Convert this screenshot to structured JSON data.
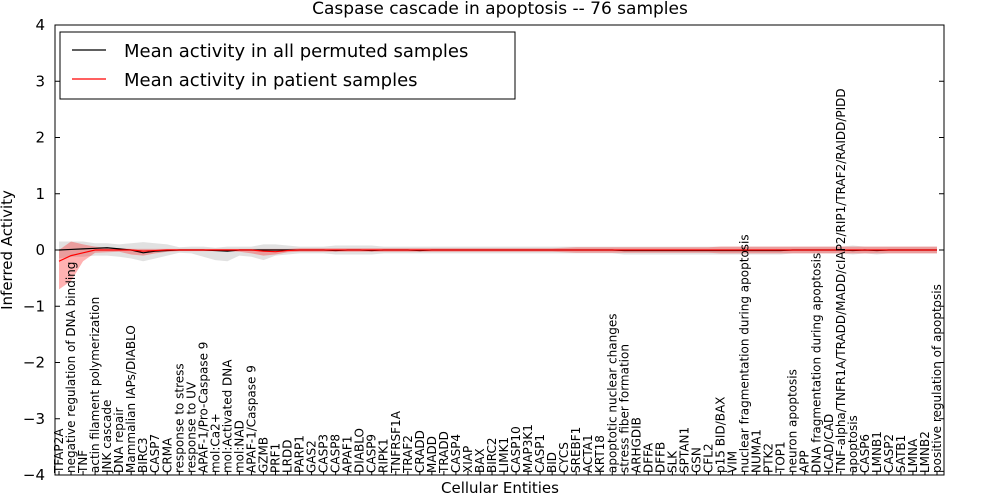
{
  "chart_data": {
    "type": "line",
    "title": "Caspase cascade in apoptosis -- 76 samples",
    "xlabel": "Cellular Entities",
    "ylabel": "Inferred Activity",
    "ylim": [
      -4,
      4
    ],
    "yticks": [
      -4,
      -3,
      -2,
      -1,
      0,
      1,
      2,
      3,
      4
    ],
    "ytick_labels": [
      "−4",
      "−3",
      "−2",
      "−1",
      "0",
      "1",
      "2",
      "3",
      "4"
    ],
    "grid": false,
    "legend_position": "top-left",
    "categories": [
      "TFAP2A",
      "negative regulation of DNA binding",
      "TNF",
      "actin filament polymerization",
      "JNK cascade",
      "DNA repair",
      "Mammalian IAPs/DIABLO",
      "BIRC3",
      "CASP7",
      "CRMA",
      "response to stress",
      "response to UV",
      "APAF-1/Pro-Caspase 9",
      "mol:Ca2+",
      "mol:Activated DNA",
      "mol:NAD",
      "APAF-1/Caspase 9",
      "GZMB",
      "PRF1",
      "LRDD",
      "PARP1",
      "GAS2",
      "CASP3",
      "CASP8",
      "APAF1",
      "DIABLO",
      "CASP9",
      "RIPK1",
      "TNFRSF1A",
      "TRAF2",
      "CRADD",
      "MADD",
      "TRADD",
      "CASP4",
      "XIAP",
      "BAX",
      "BIRC2",
      "LIMK1",
      "CASP10",
      "MAP3K1",
      "CASP1",
      "BID",
      "CYCS",
      "SREBF1",
      "ACTA1",
      "KRT18",
      "apoptotic nuclear changes",
      "stress fiber formation",
      "ARHGDIB",
      "DFFA",
      "DFFB",
      "SLK",
      "SPTAN1",
      "GSN",
      "CFL2",
      "p15 BID/BAX",
      "VIM",
      "nuclear fragmentation during apoptosis",
      "NUMA1",
      "PTK2",
      "TOP1",
      "neuron apoptosis",
      "APP",
      "DNA fragmentation during apoptosis",
      "ICAD/CAD",
      "TNF-alpha/TNFR1A/TRADD/MADD/cIAP2/RIP1/TRAF2/RAIDD/PIDD",
      "apoptosis",
      "CASP6",
      "LMNB1",
      "CASP2",
      "SATB1",
      "LMNA",
      "LMNB2",
      "positive regulation of apoptosis"
    ],
    "series": [
      {
        "name": "Mean activity in all permuted samples",
        "color": "#000000",
        "values": [
          0.0,
          0.01,
          0.02,
          0.03,
          0.04,
          0.02,
          0.0,
          -0.05,
          -0.02,
          -0.01,
          0.0,
          0.0,
          0.0,
          -0.01,
          -0.02,
          0.0,
          0.0,
          0.0,
          0.0,
          0.0,
          0.0,
          0.0,
          0.0,
          -0.01,
          0.0,
          0.0,
          -0.01,
          0.0,
          0.0,
          0.0,
          -0.01,
          0.0,
          0.0,
          0.0,
          0.0,
          0.0,
          0.0,
          0.0,
          0.0,
          0.0,
          0.0,
          0.0,
          0.0,
          0.0,
          0.0,
          0.0,
          0.0,
          -0.01,
          -0.01,
          -0.01,
          -0.01,
          -0.01,
          -0.01,
          -0.01,
          -0.01,
          -0.01,
          -0.01,
          -0.01,
          -0.01,
          -0.01,
          -0.01,
          0.0,
          0.0,
          0.0,
          0.0,
          0.0,
          -0.01,
          0.0,
          -0.01,
          0.0,
          0.0,
          0.0,
          0.0,
          0.0
        ],
        "band_upper": [
          0.15,
          0.15,
          0.15,
          0.12,
          0.12,
          0.1,
          0.12,
          0.14,
          0.12,
          0.1,
          0.05,
          0.06,
          0.06,
          0.04,
          0.06,
          0.06,
          0.06,
          0.1,
          0.1,
          0.08,
          0.06,
          0.06,
          0.06,
          0.08,
          0.08,
          0.08,
          0.08,
          0.06,
          0.06,
          0.06,
          0.06,
          0.06,
          0.06,
          0.06,
          0.06,
          0.06,
          0.06,
          0.06,
          0.06,
          0.06,
          0.06,
          0.06,
          0.06,
          0.06,
          0.06,
          0.06,
          0.06,
          0.06,
          0.06,
          0.06,
          0.06,
          0.06,
          0.06,
          0.06,
          0.06,
          0.06,
          0.06,
          0.06,
          0.06,
          0.06,
          0.06,
          0.06,
          0.06,
          0.06,
          0.06,
          0.06,
          0.08,
          0.06,
          0.06,
          0.06,
          0.06,
          0.06,
          0.06,
          0.06
        ],
        "band_lower": [
          -0.15,
          -0.12,
          -0.12,
          -0.1,
          -0.1,
          -0.12,
          -0.15,
          -0.2,
          -0.15,
          -0.1,
          -0.05,
          -0.06,
          -0.12,
          -0.18,
          -0.2,
          -0.1,
          -0.12,
          -0.18,
          -0.1,
          -0.08,
          -0.06,
          -0.06,
          -0.06,
          -0.08,
          -0.08,
          -0.08,
          -0.08,
          -0.06,
          -0.06,
          -0.06,
          -0.06,
          -0.06,
          -0.06,
          -0.06,
          -0.06,
          -0.06,
          -0.06,
          -0.06,
          -0.06,
          -0.06,
          -0.06,
          -0.06,
          -0.06,
          -0.06,
          -0.06,
          -0.06,
          -0.06,
          -0.08,
          -0.08,
          -0.08,
          -0.08,
          -0.08,
          -0.08,
          -0.08,
          -0.08,
          -0.08,
          -0.08,
          -0.08,
          -0.08,
          -0.08,
          -0.08,
          -0.06,
          -0.06,
          -0.06,
          -0.06,
          -0.06,
          -0.08,
          -0.06,
          -0.08,
          -0.06,
          -0.06,
          -0.06,
          -0.06,
          -0.06
        ]
      },
      {
        "name": "Mean activity in patient samples",
        "color": "#ff0000",
        "values": [
          -0.2,
          -0.1,
          -0.05,
          0.0,
          0.0,
          0.0,
          0.0,
          -0.02,
          -0.01,
          0.0,
          0.0,
          0.0,
          0.0,
          0.0,
          0.0,
          0.0,
          0.0,
          -0.02,
          -0.03,
          -0.01,
          0.0,
          0.0,
          0.0,
          0.0,
          0.0,
          0.0,
          0.0,
          0.0,
          0.0,
          0.0,
          0.0,
          0.0,
          0.0,
          0.0,
          0.0,
          0.0,
          0.0,
          0.0,
          0.0,
          0.0,
          0.0,
          0.0,
          0.0,
          0.0,
          0.0,
          0.0,
          0.0,
          0.0,
          0.0,
          0.0,
          0.0,
          0.0,
          0.0,
          0.0,
          0.0,
          0.0,
          0.0,
          0.0,
          0.0,
          0.0,
          0.0,
          0.0,
          0.0,
          0.0,
          0.0,
          0.0,
          0.0,
          0.0,
          0.0,
          0.0,
          0.0,
          0.0,
          0.0,
          0.0
        ],
        "band_upper": [
          0.0,
          0.15,
          0.1,
          0.06,
          0.04,
          0.03,
          0.02,
          0.02,
          0.02,
          0.02,
          0.02,
          0.02,
          0.02,
          0.02,
          0.02,
          0.02,
          0.02,
          0.02,
          0.02,
          0.02,
          0.03,
          0.03,
          0.03,
          0.03,
          0.03,
          0.03,
          0.03,
          0.03,
          0.03,
          0.03,
          0.03,
          0.03,
          0.03,
          0.03,
          0.03,
          0.03,
          0.03,
          0.03,
          0.03,
          0.03,
          0.03,
          0.03,
          0.04,
          0.05,
          0.05,
          0.05,
          0.05,
          0.05,
          0.05,
          0.05,
          0.05,
          0.05,
          0.05,
          0.05,
          0.05,
          0.06,
          0.06,
          0.06,
          0.06,
          0.06,
          0.06,
          0.06,
          0.06,
          0.06,
          0.06,
          0.06,
          0.06,
          0.06,
          0.06,
          0.06,
          0.06,
          0.06,
          0.06,
          0.06
        ],
        "band_lower": [
          -0.7,
          -0.55,
          -0.2,
          -0.05,
          -0.04,
          -0.03,
          -0.08,
          -0.1,
          -0.06,
          -0.03,
          -0.02,
          -0.02,
          -0.02,
          -0.02,
          -0.02,
          -0.03,
          -0.06,
          -0.1,
          -0.08,
          -0.04,
          -0.03,
          -0.03,
          -0.03,
          -0.03,
          -0.03,
          -0.03,
          -0.03,
          -0.03,
          -0.03,
          -0.03,
          -0.03,
          -0.03,
          -0.03,
          -0.03,
          -0.03,
          -0.03,
          -0.03,
          -0.03,
          -0.03,
          -0.03,
          -0.03,
          -0.03,
          -0.04,
          -0.05,
          -0.05,
          -0.05,
          -0.05,
          -0.05,
          -0.05,
          -0.05,
          -0.05,
          -0.05,
          -0.05,
          -0.05,
          -0.05,
          -0.06,
          -0.06,
          -0.06,
          -0.06,
          -0.06,
          -0.06,
          -0.06,
          -0.06,
          -0.06,
          -0.06,
          -0.06,
          -0.06,
          -0.06,
          -0.06,
          -0.06,
          -0.06,
          -0.06,
          -0.06,
          -0.06
        ]
      }
    ]
  }
}
